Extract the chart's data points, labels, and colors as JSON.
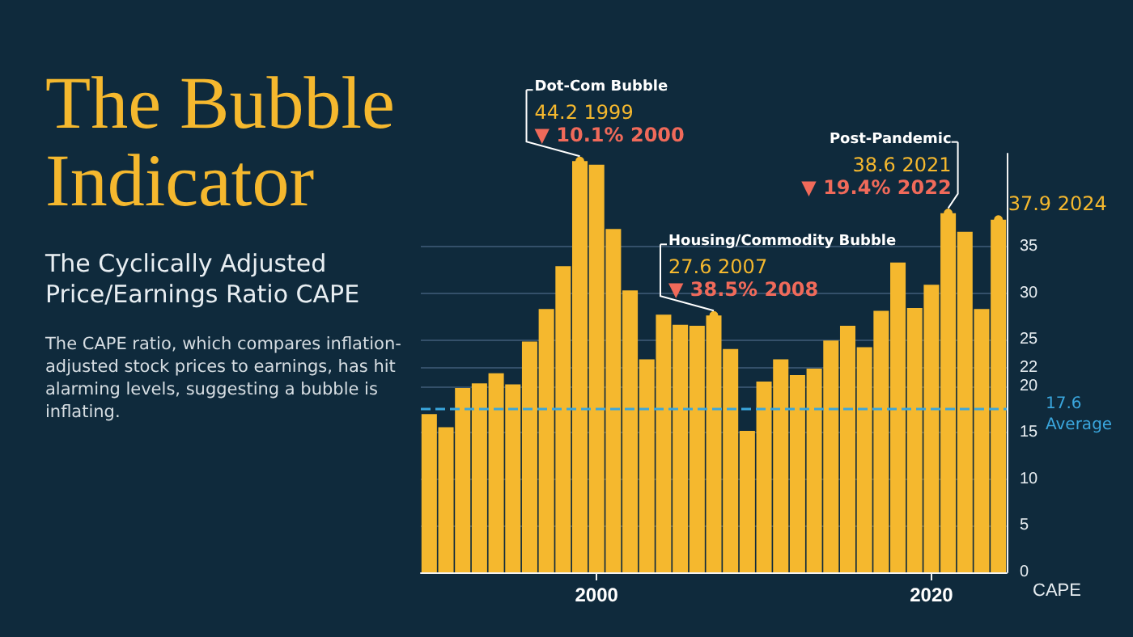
{
  "chart_data": {
    "type": "bar",
    "title": "The Bubble Indicator",
    "subtitle": "The Cyclically Adjusted Price/Earnings Ratio CAPE",
    "ylabel": "CAPE",
    "x": [
      1990,
      1991,
      1992,
      1993,
      1994,
      1995,
      1996,
      1997,
      1998,
      1999,
      2000,
      2001,
      2002,
      2003,
      2004,
      2005,
      2006,
      2007,
      2008,
      2009,
      2010,
      2011,
      2012,
      2013,
      2014,
      2015,
      2016,
      2017,
      2018,
      2019,
      2020,
      2021,
      2022,
      2023,
      2024
    ],
    "values": [
      17.0,
      15.6,
      19.8,
      20.3,
      21.4,
      20.2,
      24.8,
      28.3,
      32.9,
      44.2,
      43.8,
      36.9,
      30.3,
      22.9,
      27.7,
      26.6,
      26.5,
      27.6,
      24.0,
      15.2,
      20.5,
      22.9,
      21.2,
      21.9,
      24.9,
      26.5,
      24.2,
      28.1,
      33.3,
      28.4,
      30.9,
      38.6,
      36.6,
      28.3,
      37.9
    ],
    "color": "#f5b82e",
    "xlim": [
      1989.5,
      2024.5
    ],
    "xticks": [
      2000,
      2020
    ],
    "ylim": [
      0,
      45
    ],
    "yticks": [
      0,
      5,
      10,
      15,
      20,
      22,
      25,
      30,
      35
    ],
    "grid": "y",
    "ref_lines": [
      {
        "axis": "y",
        "value": 17.6,
        "label": "17.6 Average",
        "color": "#3aa6dd",
        "line_style": "dashed"
      }
    ],
    "annotations": [
      {
        "text": "Dot-Com Bubble",
        "x": 1999,
        "y": 44.2
      },
      {
        "text": "44.2 1999",
        "x": 1999,
        "y": 44.2
      },
      {
        "text": "▼ 10.1% 2000",
        "x": 1999,
        "y": 44.2
      },
      {
        "text": "Housing/Commodity Bubble",
        "x": 2007,
        "y": 27.6
      },
      {
        "text": "27.6 2007",
        "x": 2007,
        "y": 27.6
      },
      {
        "text": "▼ 38.5% 2008",
        "x": 2007,
        "y": 27.6
      },
      {
        "text": "Post-Pandemic",
        "x": 2021,
        "y": 38.6
      },
      {
        "text": "38.6 2021",
        "x": 2021,
        "y": 38.6
      },
      {
        "text": "▼ 19.4% 2022",
        "x": 2021,
        "y": 38.6
      },
      {
        "text": "37.9 2024",
        "x": 2024,
        "y": 37.9
      },
      "The CAPE ratio, which compares inflation-adjusted stock prices to earnings, has hit alarming levels, suggesting a bubble is inflating."
    ]
  }
}
